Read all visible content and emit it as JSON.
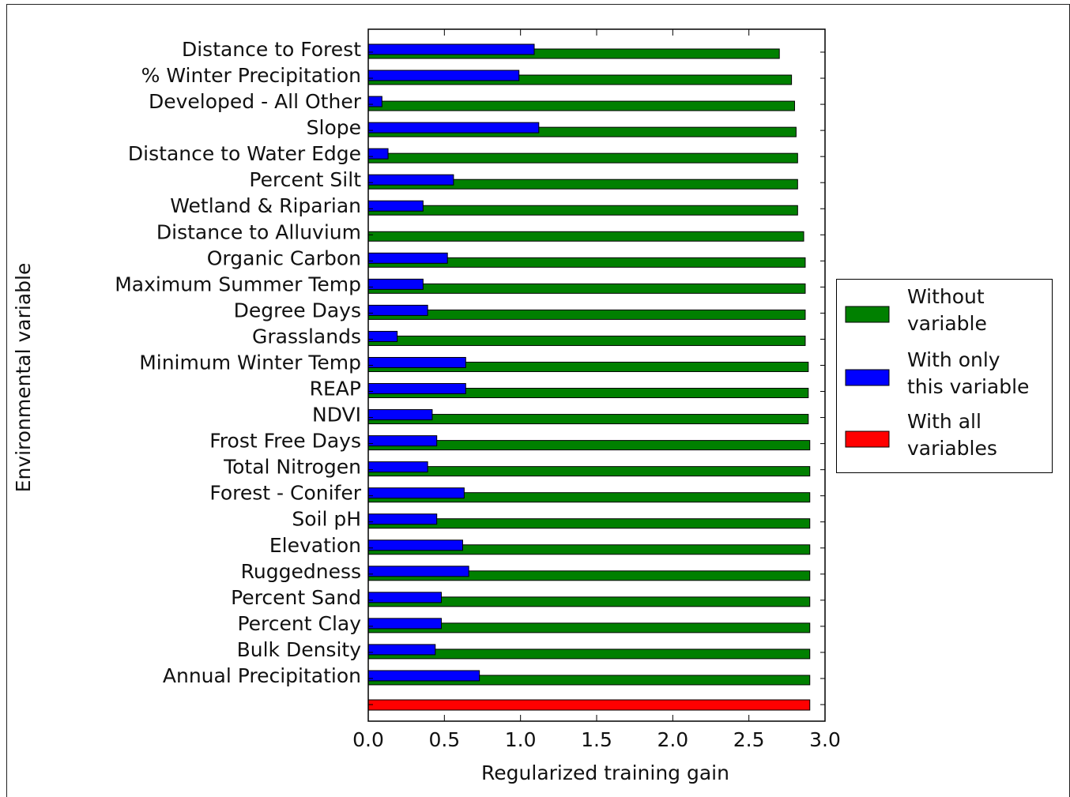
{
  "chart_data": {
    "type": "barh",
    "x_label": "Regularized training gain",
    "y_label": "Environmental variable",
    "categories": [
      "Distance to Forest",
      "% Winter Precipitation",
      "Developed - All Other",
      "Slope",
      "Distance to Water Edge",
      "Percent Silt",
      "Wetland & Riparian",
      "Distance to Alluvium",
      "Organic Carbon",
      "Maximum Summer Temp",
      "Degree Days",
      "Grasslands",
      "Minimum Winter Temp",
      "REAP",
      "NDVI",
      "Frost Free Days",
      "Total Nitrogen",
      "Forest - Conifer",
      "Soil pH",
      "Elevation",
      "Ruggedness",
      "Percent Sand",
      "Percent Clay",
      "Bulk Density",
      "Annual Precipitation",
      null
    ],
    "series": [
      {
        "name": "Without variable",
        "color": "#008000",
        "values": [
          2.7,
          2.78,
          2.8,
          2.81,
          2.82,
          2.82,
          2.82,
          2.86,
          2.87,
          2.87,
          2.87,
          2.87,
          2.89,
          2.89,
          2.89,
          2.9,
          2.9,
          2.9,
          2.9,
          2.9,
          2.9,
          2.9,
          2.9,
          2.9,
          2.9,
          null
        ]
      },
      {
        "name": "With only this variable",
        "color": "#0000ff",
        "values": [
          1.09,
          0.99,
          0.09,
          1.12,
          0.13,
          0.56,
          0.36,
          0,
          0.52,
          0.36,
          0.39,
          0.19,
          0.64,
          0.64,
          0.42,
          0.45,
          0.39,
          0.63,
          0.45,
          0.62,
          0.66,
          0.48,
          0.48,
          0.44,
          0.73,
          null
        ]
      },
      {
        "name": "With all variables",
        "color": "#ff0000",
        "values": [
          null,
          null,
          null,
          null,
          null,
          null,
          null,
          null,
          null,
          null,
          null,
          null,
          null,
          null,
          null,
          null,
          null,
          null,
          null,
          null,
          null,
          null,
          null,
          null,
          null,
          2.9
        ]
      }
    ],
    "xlim": [
      0,
      3
    ],
    "xticks": [
      {
        "value": 0,
        "label": "0.0"
      },
      0.5,
      {
        "value": 1,
        "label": "1.0"
      },
      1.5,
      {
        "value": 2,
        "label": "2.0"
      },
      2.5,
      {
        "value": 3,
        "label": "3.0"
      }
    ]
  }
}
